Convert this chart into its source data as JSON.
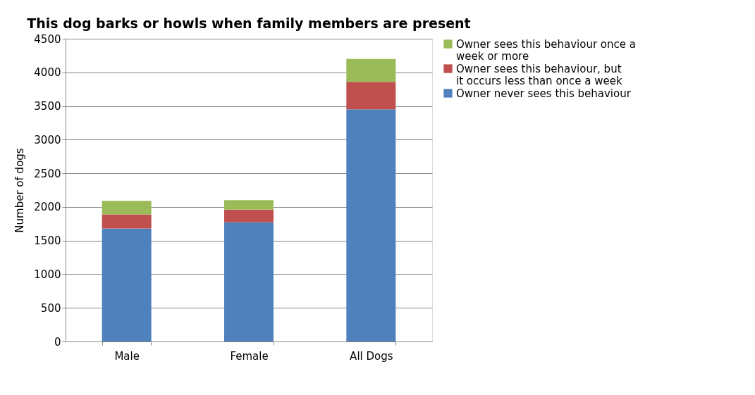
{
  "chart_data": {
    "type": "bar",
    "title": "This dog barks or howls when family members are present",
    "ylabel": "Number of dogs",
    "categories": [
      "Male",
      "Female",
      "All Dogs"
    ],
    "stacked": true,
    "series": [
      {
        "name": "Owner never sees this behaviour",
        "color": "#4f81bd",
        "values": [
          1680,
          1770,
          3450
        ]
      },
      {
        "name": "Owner sees this behaviour, but it occurs less than once a week",
        "color": "#c0504d",
        "values": [
          210,
          190,
          410
        ]
      },
      {
        "name": "Owner sees this behaviour once a week or more",
        "color": "#9bbb59",
        "values": [
          200,
          140,
          340
        ]
      }
    ],
    "ylim": [
      0,
      4500
    ],
    "yticks": [
      0,
      500,
      1000,
      1500,
      2000,
      2500,
      3000,
      3500,
      4000,
      4500
    ],
    "grid": "y",
    "legend": "right"
  }
}
